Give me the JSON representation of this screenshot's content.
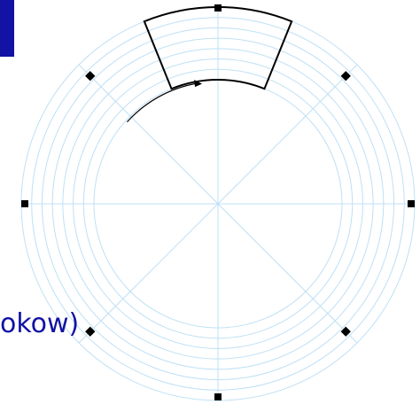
{
  "labels": {
    "cut_text": "okow)"
  },
  "colors": {
    "grid_lines": "#bfe0f5",
    "marker": "#000000",
    "sector_outline": "#000000",
    "arrow": "#000000",
    "accent": "#1212a4"
  },
  "diagram": {
    "type": "disk-sector-layout",
    "track_count": 8,
    "spoke_count": 8,
    "marker_count": 8,
    "highlighted_sector": "top",
    "rotation": "clockwise"
  }
}
